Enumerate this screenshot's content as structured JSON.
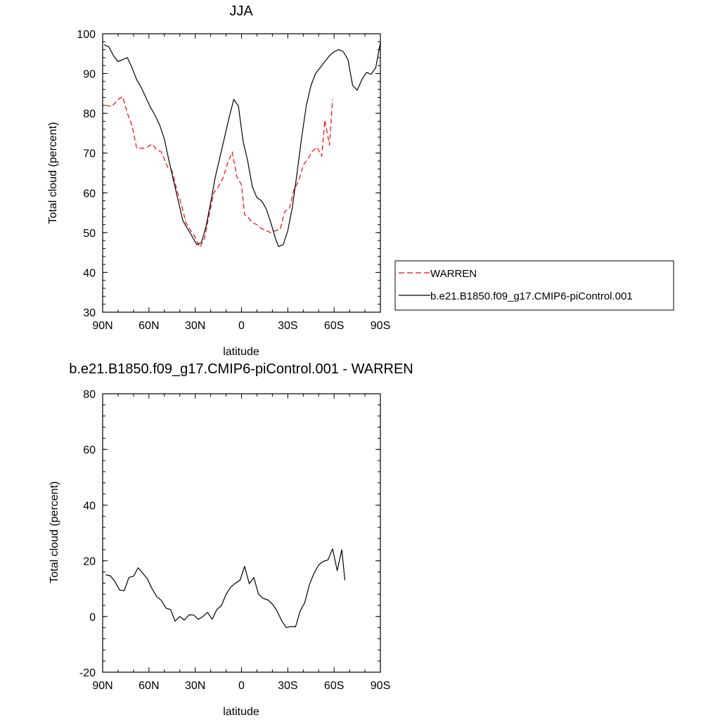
{
  "chart_data": [
    {
      "type": "line",
      "title": "JJA",
      "xlabel": "latitude",
      "ylabel": "Total cloud (percent)",
      "xlim": [
        90,
        -90
      ],
      "ylim": [
        30,
        100
      ],
      "x_ticks": [
        {
          "value": 90,
          "label": "90N"
        },
        {
          "value": 60,
          "label": "60N"
        },
        {
          "value": 30,
          "label": "30N"
        },
        {
          "value": 0,
          "label": "0"
        },
        {
          "value": -30,
          "label": "30S"
        },
        {
          "value": -60,
          "label": "60S"
        },
        {
          "value": -90,
          "label": "90S"
        }
      ],
      "y_ticks": [
        {
          "value": 30,
          "label": "30"
        },
        {
          "value": 40,
          "label": "40"
        },
        {
          "value": 50,
          "label": "50"
        },
        {
          "value": 60,
          "label": "60"
        },
        {
          "value": 70,
          "label": "70"
        },
        {
          "value": 80,
          "label": "80"
        },
        {
          "value": 90,
          "label": "90"
        },
        {
          "value": 100,
          "label": "100"
        }
      ],
      "grid": false,
      "legend": "right",
      "series": [
        {
          "name": "WARREN",
          "color": "#ff0000",
          "dash": "dashed",
          "points": [
            [
              88,
              82.0
            ],
            [
              84,
              81.7
            ],
            [
              80,
              83.5
            ],
            [
              77,
              84.2
            ],
            [
              74,
              80.0
            ],
            [
              71,
              77.0
            ],
            [
              68,
              71.3
            ],
            [
              64,
              71.2
            ],
            [
              61,
              71.5
            ],
            [
              58,
              72.3
            ],
            [
              55,
              70.8
            ],
            [
              52,
              70.3
            ],
            [
              48,
              66.5
            ],
            [
              45,
              65.5
            ],
            [
              42,
              60.8
            ],
            [
              39,
              57.2
            ],
            [
              36,
              52.5
            ],
            [
              33,
              50.5
            ],
            [
              30,
              48.8
            ],
            [
              27,
              46.3
            ],
            [
              24,
              48.5
            ],
            [
              21,
              54.5
            ],
            [
              18,
              60.0
            ],
            [
              15,
              61.5
            ],
            [
              12,
              63.8
            ],
            [
              9,
              67.5
            ],
            [
              6,
              70.3
            ],
            [
              3,
              64.0
            ],
            [
              0,
              62.0
            ],
            [
              -2,
              54.5
            ],
            [
              -4,
              54.0
            ],
            [
              -7,
              52.5
            ],
            [
              -10,
              52.0
            ],
            [
              -13,
              51.0
            ],
            [
              -16,
              50.5
            ],
            [
              -19,
              50.0
            ],
            [
              -22,
              50.5
            ],
            [
              -25,
              50.8
            ],
            [
              -28,
              55.3
            ],
            [
              -31,
              56.0
            ],
            [
              -34,
              60.8
            ],
            [
              -37,
              63.0
            ],
            [
              -40,
              67.0
            ],
            [
              -43,
              68.5
            ],
            [
              -46,
              70.5
            ],
            [
              -49,
              71.5
            ],
            [
              -52,
              69.2
            ],
            [
              -54,
              78.3
            ],
            [
              -57,
              72.0
            ],
            [
              -59,
              83.5
            ]
          ]
        },
        {
          "name": "b.e21.B1850.f09_g17.CMIP6-piControl.001",
          "color": "#000000",
          "dash": "solid",
          "points": [
            [
              89,
              97.2
            ],
            [
              86,
              96.7
            ],
            [
              83,
              94.5
            ],
            [
              80,
              93.0
            ],
            [
              77,
              93.5
            ],
            [
              74,
              94.0
            ],
            [
              71,
              91.5
            ],
            [
              68,
              88.5
            ],
            [
              65,
              86.5
            ],
            [
              62,
              84.0
            ],
            [
              59,
              81.5
            ],
            [
              56,
              79.5
            ],
            [
              53,
              77.0
            ],
            [
              50,
              73.5
            ],
            [
              47,
              68.0
            ],
            [
              44,
              63.0
            ],
            [
              41,
              58.0
            ],
            [
              38,
              53.0
            ],
            [
              35,
              51.0
            ],
            [
              32,
              49.0
            ],
            [
              29,
              47.0
            ],
            [
              26,
              47.5
            ],
            [
              23,
              51.5
            ],
            [
              20,
              57.5
            ],
            [
              17,
              64.0
            ],
            [
              14,
              69.0
            ],
            [
              11,
              74.0
            ],
            [
              8,
              79.0
            ],
            [
              5,
              83.5
            ],
            [
              2,
              81.8
            ],
            [
              -1,
              73.0
            ],
            [
              -4,
              68.0
            ],
            [
              -7,
              61.5
            ],
            [
              -10,
              58.8
            ],
            [
              -13,
              58.0
            ],
            [
              -16,
              56.0
            ],
            [
              -19,
              52.5
            ],
            [
              -22,
              48.5
            ],
            [
              -24,
              46.5
            ],
            [
              -27,
              47.0
            ],
            [
              -30,
              50.5
            ],
            [
              -33,
              56.5
            ],
            [
              -36,
              65.0
            ],
            [
              -39,
              74.0
            ],
            [
              -42,
              82.0
            ],
            [
              -45,
              87.0
            ],
            [
              -48,
              90.0
            ],
            [
              -51,
              91.5
            ],
            [
              -54,
              93.0
            ],
            [
              -57,
              94.5
            ],
            [
              -60,
              95.5
            ],
            [
              -63,
              96.0
            ],
            [
              -66,
              95.5
            ],
            [
              -69,
              93.5
            ],
            [
              -72,
              87.0
            ],
            [
              -75,
              85.8
            ],
            [
              -78,
              88.5
            ],
            [
              -81,
              90.3
            ],
            [
              -84,
              89.8
            ],
            [
              -87,
              91.5
            ],
            [
              -90,
              97.8
            ]
          ]
        }
      ]
    },
    {
      "type": "line",
      "title": "b.e21.B1850.f09_g17.CMIP6-piControl.001 - WARREN",
      "xlabel": "latitude",
      "ylabel": "Total cloud (percent)",
      "xlim": [
        90,
        -90
      ],
      "ylim": [
        -20,
        80
      ],
      "x_ticks": [
        {
          "value": 90,
          "label": "90N"
        },
        {
          "value": 60,
          "label": "60N"
        },
        {
          "value": 30,
          "label": "30N"
        },
        {
          "value": 0,
          "label": "0"
        },
        {
          "value": -30,
          "label": "30S"
        },
        {
          "value": -60,
          "label": "60S"
        },
        {
          "value": -90,
          "label": "90S"
        }
      ],
      "y_ticks": [
        {
          "value": -20,
          "label": "-20"
        },
        {
          "value": 0,
          "label": "0"
        },
        {
          "value": 20,
          "label": "20"
        },
        {
          "value": 40,
          "label": "40"
        },
        {
          "value": 60,
          "label": "60"
        },
        {
          "value": 80,
          "label": "80"
        }
      ],
      "grid": false,
      "series": [
        {
          "color": "#000000",
          "dash": "solid",
          "points": [
            [
              88,
              15.0
            ],
            [
              85,
              14.6
            ],
            [
              82,
              12.5
            ],
            [
              79,
              9.5
            ],
            [
              76,
              9.3
            ],
            [
              73,
              14.0
            ],
            [
              70,
              14.5
            ],
            [
              67,
              17.5
            ],
            [
              64,
              15.5
            ],
            [
              61,
              13.5
            ],
            [
              58,
              10.0
            ],
            [
              55,
              7.2
            ],
            [
              52,
              5.8
            ],
            [
              49,
              3.0
            ],
            [
              46,
              2.5
            ],
            [
              43,
              -1.7
            ],
            [
              40,
              0.0
            ],
            [
              37,
              -1.3
            ],
            [
              34,
              0.6
            ],
            [
              31,
              0.5
            ],
            [
              28,
              -1.0
            ],
            [
              25,
              0.0
            ],
            [
              22,
              1.5
            ],
            [
              19,
              -1.0
            ],
            [
              16,
              2.5
            ],
            [
              13,
              4.0
            ],
            [
              10,
              8.0
            ],
            [
              7,
              10.5
            ],
            [
              4,
              12.0
            ],
            [
              1,
              13.0
            ],
            [
              -2,
              18.0
            ],
            [
              -5,
              11.8
            ],
            [
              -8,
              14.0
            ],
            [
              -11,
              8.0
            ],
            [
              -14,
              6.5
            ],
            [
              -17,
              6.0
            ],
            [
              -20,
              4.5
            ],
            [
              -23,
              2.0
            ],
            [
              -26,
              -1.5
            ],
            [
              -29,
              -4.0
            ],
            [
              -32,
              -3.6
            ],
            [
              -35,
              -3.7
            ],
            [
              -38,
              2.0
            ],
            [
              -41,
              5.0
            ],
            [
              -44,
              11.5
            ],
            [
              -47,
              15.5
            ],
            [
              -50,
              18.5
            ],
            [
              -53,
              19.8
            ],
            [
              -56,
              20.3
            ],
            [
              -59,
              24.3
            ],
            [
              -62,
              16.5
            ],
            [
              -65,
              24.0
            ],
            [
              -67,
              13.0
            ]
          ]
        }
      ]
    }
  ]
}
